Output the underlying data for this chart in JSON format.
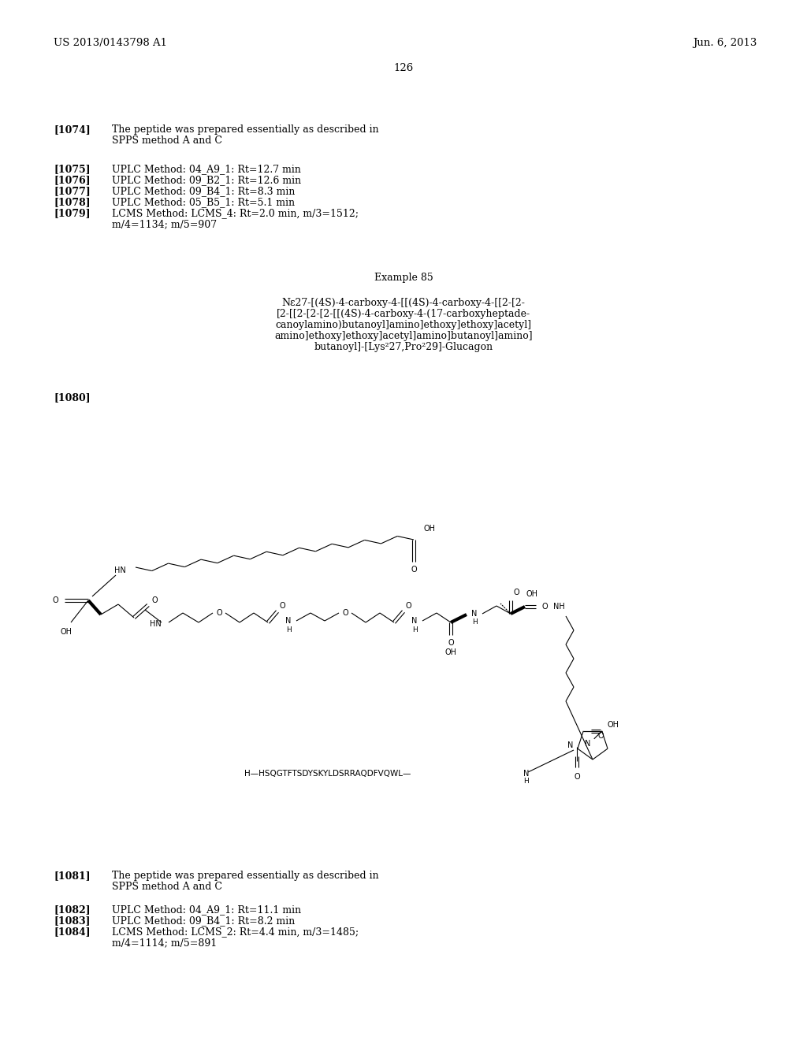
{
  "page_number": "126",
  "header_left": "US 2013/0143798 A1",
  "header_right": "Jun. 6, 2013",
  "background_color": "#ffffff",
  "text_color": "#000000",
  "para_1074_tag": "[1074]",
  "para_1074_line1": "The peptide was prepared essentially as described in",
  "para_1074_line2": "SPPS method A and C",
  "entries_1": [
    {
      "tag": "[1075]",
      "text": "UPLC Method: 04_A9_1: Rt=12.7 min"
    },
    {
      "tag": "[1076]",
      "text": "UPLC Method: 09_B2_1: Rt=12.6 min"
    },
    {
      "tag": "[1077]",
      "text": "UPLC Method: 09_B4_1: Rt=8.3 min"
    },
    {
      "tag": "[1078]",
      "text": "UPLC Method: 05_B5_1: Rt=5.1 min"
    },
    {
      "tag": "[1079]",
      "text": "LCMS Method: LCMS_4: Rt=2.0 min, m/3=1512;"
    },
    {
      "tag": "",
      "text": "m/4=1134; m/5=907"
    }
  ],
  "example_title": "Example 85",
  "compound_lines": [
    "Nε27-[(4S)-4-carboxy-4-[[(4S)-4-carboxy-4-[[2-[2-",
    "[2-[[2-[2-[2-[[(4S)-4-carboxy-4-(17-carboxyheptade-",
    "canoylamino)butanoyl]amino]ethoxy]ethoxy]acetyl]",
    "amino]ethoxy]ethoxy]acetyl]amino]butanoyl]amino]",
    "butanoyl]-[Lys²27,Pro²29]-Glucagon"
  ],
  "tag_1080": "[1080]",
  "para_1081_tag": "[1081]",
  "para_1081_line1": "The peptide was prepared essentially as described in",
  "para_1081_line2": "SPPS method A and C",
  "entries_2": [
    {
      "tag": "[1082]",
      "text": "UPLC Method: 04_A9_1: Rt=11.1 min"
    },
    {
      "tag": "[1083]",
      "text": "UPLC Method: 09_B4_1: Rt=8.2 min"
    },
    {
      "tag": "[1084]",
      "text": "LCMS Method: LCMS_2: Rt=4.4 min, m/3=1485;"
    },
    {
      "tag": "",
      "text": "m/4=1114; m/5=891"
    }
  ]
}
